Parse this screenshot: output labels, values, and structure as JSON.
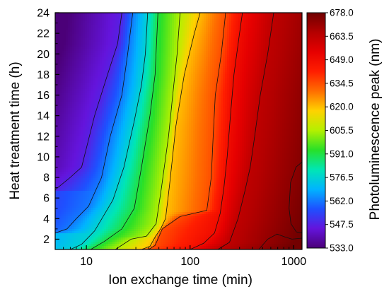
{
  "chart_data": {
    "type": "heatmap",
    "subtype": "filled-contour",
    "xlabel": "Ion exchange time (min)",
    "ylabel": "Heat treatment time (h)",
    "colorbar_label": "Photoluminescence peak (nm)",
    "x_scale": "log",
    "xlim": [
      5,
      1200
    ],
    "ylim": [
      1,
      24
    ],
    "x_ticks": [
      10,
      100,
      1000
    ],
    "x_tick_labels": [
      "10",
      "100",
      "1000"
    ],
    "y_ticks": [
      2,
      4,
      6,
      8,
      10,
      12,
      14,
      16,
      18,
      20,
      22,
      24
    ],
    "y_tick_labels": [
      "2",
      "4",
      "6",
      "8",
      "10",
      "12",
      "14",
      "16",
      "18",
      "20",
      "22",
      "24"
    ],
    "z_range": [
      533.0,
      678.0
    ],
    "colorbar_ticks": [
      678.0,
      663.5,
      649.0,
      634.5,
      620.0,
      605.5,
      591.0,
      576.5,
      562.0,
      547.5,
      533.0
    ],
    "colorbar_tick_labels": [
      "678.0",
      "663.5",
      "649.0",
      "634.5",
      "620.0",
      "605.5",
      "591.0",
      "576.5",
      "562.0",
      "547.5",
      "533.0"
    ],
    "colorbar_colors": [
      "#700000",
      "#b40000",
      "#e60000",
      "#ff1e00",
      "#ff6e00",
      "#ffd200",
      "#b4f000",
      "#28e028",
      "#00e6b4",
      "#00b4ff",
      "#1e50ff",
      "#6414dc",
      "#4b0078"
    ],
    "contours": [
      {
        "level": 547.5,
        "points": [
          [
            5,
            6.8
          ],
          [
            7,
            8
          ],
          [
            9,
            9
          ],
          [
            12,
            14
          ],
          [
            16,
            18
          ],
          [
            20,
            21
          ],
          [
            22,
            24
          ]
        ]
      },
      {
        "level": 562.0,
        "points": [
          [
            5,
            2.6
          ],
          [
            6.5,
            3
          ],
          [
            8,
            4
          ],
          [
            10.5,
            5.2
          ],
          [
            14,
            8
          ],
          [
            17,
            12
          ],
          [
            22,
            16
          ],
          [
            25,
            20
          ],
          [
            28,
            24
          ]
        ]
      },
      {
        "level": 576.5,
        "points": [
          [
            7,
            1
          ],
          [
            9,
            1.5
          ],
          [
            12,
            2.8
          ],
          [
            18,
            5.8
          ],
          [
            23,
            9
          ],
          [
            29,
            13.5
          ],
          [
            34,
            17
          ],
          [
            37,
            20
          ],
          [
            39,
            24
          ]
        ]
      },
      {
        "level": 591.0,
        "points": [
          [
            11,
            1
          ],
          [
            15,
            1.8
          ],
          [
            22,
            3
          ],
          [
            29,
            5
          ],
          [
            34,
            9
          ],
          [
            41,
            14
          ],
          [
            46,
            18
          ],
          [
            49,
            24
          ]
        ]
      },
      {
        "level": 605.5,
        "points": [
          [
            19,
            1
          ],
          [
            27,
            2
          ],
          [
            38,
            2.3
          ],
          [
            47,
            3.5
          ],
          [
            53,
            7
          ],
          [
            62,
            12
          ],
          [
            68,
            16
          ],
          [
            75,
            20
          ],
          [
            80,
            24
          ]
        ]
      },
      {
        "level": 620.0,
        "points": [
          [
            34,
            1
          ],
          [
            41,
            1.3
          ],
          [
            46,
            2.2
          ],
          [
            52,
            3
          ],
          [
            58,
            4
          ],
          [
            63,
            7
          ],
          [
            73,
            13
          ],
          [
            88,
            18
          ],
          [
            110,
            22
          ],
          [
            125,
            24
          ]
        ]
      },
      {
        "level": 634.5,
        "points": [
          [
            40,
            1
          ],
          [
            46,
            1.4
          ],
          [
            54,
            3
          ],
          [
            80,
            4.2
          ],
          [
            145,
            4.8
          ],
          [
            160,
            8
          ],
          [
            167,
            12
          ],
          [
            175,
            16
          ],
          [
            200,
            20
          ],
          [
            220,
            24
          ]
        ]
      },
      {
        "level": 649.0,
        "points": [
          [
            100,
            1
          ],
          [
            135,
            1.6
          ],
          [
            172,
            2.6
          ],
          [
            195,
            4.5
          ],
          [
            212,
            7
          ],
          [
            228,
            10
          ],
          [
            245,
            14
          ],
          [
            265,
            18
          ],
          [
            300,
            22
          ],
          [
            320,
            24
          ]
        ]
      },
      {
        "level": 663.5,
        "points": [
          [
            185,
            1
          ],
          [
            240,
            1.7
          ],
          [
            290,
            4
          ],
          [
            340,
            6.8
          ],
          [
            380,
            9
          ],
          [
            420,
            12
          ],
          [
            475,
            16
          ],
          [
            560,
            20
          ],
          [
            640,
            24
          ]
        ]
      },
      {
        "level": 670.0,
        "points": [
          [
            460,
            1
          ],
          [
            560,
            2
          ],
          [
            690,
            2.5
          ],
          [
            830,
            2.2
          ],
          [
            960,
            2
          ],
          [
            1200,
            2.1
          ]
        ]
      },
      {
        "level": 672.0,
        "points": [
          [
            1200,
            9.5
          ],
          [
            1050,
            9
          ],
          [
            930,
            7.5
          ],
          [
            900,
            5
          ],
          [
            940,
            3.5
          ],
          [
            1060,
            2.7
          ],
          [
            1200,
            2.6
          ]
        ]
      }
    ]
  }
}
